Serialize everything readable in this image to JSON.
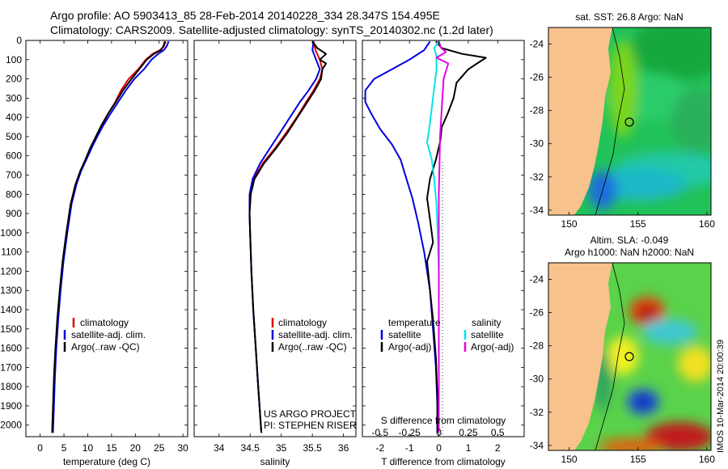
{
  "header": {
    "line1": "Argo profile: AO 5903413_85 28-Feb-2014 20140228_334 28.347S 154.495E",
    "line2": "Climatology: CARS2009. Satellite-adjusted climatology: synTS_20140302.nc (1.2d later)"
  },
  "colors": {
    "climatology": "#e00000",
    "satellite": "#0000e0",
    "argo": "#000000",
    "salinity_satellite": "#00e6e6",
    "salinity_argo": "#e600e6",
    "land": "#f7c28c"
  },
  "depth_ticks": [
    "0",
    "100",
    "200",
    "300",
    "400",
    "500",
    "600",
    "700",
    "800",
    "900",
    "1000",
    "1100",
    "1200",
    "1300",
    "1400",
    "1500",
    "1600",
    "1700",
    "1800",
    "1900",
    "2000"
  ],
  "chart_data": [
    {
      "type": "line",
      "xlabel": "temperature (deg C)",
      "xlim": [
        -3,
        31
      ],
      "ylim": [
        2060,
        0
      ],
      "x_ticks": [
        "0",
        "5",
        "10",
        "15",
        "20",
        "25",
        "30"
      ],
      "legend": {
        "placement": "lower-left",
        "entries": [
          "climatology",
          "satellite-adj. clim.",
          "Argo(..raw -QC)"
        ]
      },
      "series": [
        {
          "name": "climatology",
          "color": "#e00000",
          "points": [
            [
              26.4,
              5
            ],
            [
              26.0,
              30
            ],
            [
              25.2,
              50
            ],
            [
              23.6,
              70
            ],
            [
              22.2,
              100
            ],
            [
              20.6,
              150
            ],
            [
              18.6,
              200
            ],
            [
              17.0,
              260
            ],
            [
              15.8,
              320
            ],
            [
              14.3,
              380
            ],
            [
              13.0,
              440
            ],
            [
              11.8,
              500
            ],
            [
              10.6,
              560
            ],
            [
              9.6,
              620
            ],
            [
              8.5,
              680
            ],
            [
              7.5,
              750
            ],
            [
              6.5,
              850
            ],
            [
              5.6,
              1000
            ],
            [
              4.8,
              1150
            ],
            [
              4.2,
              1300
            ],
            [
              3.7,
              1450
            ],
            [
              3.3,
              1600
            ],
            [
              3.0,
              1750
            ],
            [
              2.8,
              1900
            ],
            [
              2.6,
              2040
            ]
          ]
        },
        {
          "name": "satellite-adj. clim.",
          "color": "#0000e0",
          "points": [
            [
              27.0,
              5
            ],
            [
              26.6,
              30
            ],
            [
              26.0,
              50
            ],
            [
              24.8,
              70
            ],
            [
              23.4,
              100
            ],
            [
              21.8,
              150
            ],
            [
              19.8,
              200
            ],
            [
              18.0,
              260
            ],
            [
              16.4,
              320
            ],
            [
              14.8,
              380
            ],
            [
              13.3,
              440
            ],
            [
              12.0,
              500
            ],
            [
              10.8,
              560
            ],
            [
              9.7,
              620
            ],
            [
              8.6,
              680
            ],
            [
              7.6,
              750
            ],
            [
              6.6,
              850
            ],
            [
              5.7,
              1000
            ],
            [
              4.9,
              1150
            ],
            [
              4.3,
              1300
            ],
            [
              3.8,
              1450
            ],
            [
              3.4,
              1600
            ],
            [
              3.1,
              1750
            ],
            [
              2.9,
              1900
            ],
            [
              2.7,
              2040
            ]
          ]
        },
        {
          "name": "Argo(..raw -QC)",
          "color": "#000000",
          "points": [
            [
              26.2,
              5
            ],
            [
              25.9,
              30
            ],
            [
              25.4,
              50
            ],
            [
              23.9,
              70
            ],
            [
              22.4,
              100
            ],
            [
              20.8,
              150
            ],
            [
              19.2,
              200
            ],
            [
              17.4,
              260
            ],
            [
              15.9,
              320
            ],
            [
              14.3,
              380
            ],
            [
              12.9,
              440
            ],
            [
              11.7,
              500
            ],
            [
              10.5,
              560
            ],
            [
              9.5,
              620
            ],
            [
              8.4,
              680
            ],
            [
              7.4,
              750
            ],
            [
              6.4,
              850
            ],
            [
              5.5,
              1000
            ],
            [
              4.7,
              1150
            ],
            [
              4.1,
              1300
            ],
            [
              3.6,
              1450
            ],
            [
              3.2,
              1600
            ],
            [
              2.9,
              1750
            ],
            [
              2.7,
              1900
            ],
            [
              2.5,
              2040
            ]
          ]
        }
      ]
    },
    {
      "type": "line",
      "xlabel": "salinity",
      "xlim": [
        33.6,
        36.2
      ],
      "ylim": [
        2060,
        0
      ],
      "x_ticks": [
        "34",
        "34.5",
        "35",
        "35.5",
        "36"
      ],
      "legend": {
        "placement": "lower-right",
        "entries": [
          "climatology",
          "satellite-adj. clim.",
          "Argo(..raw -QC)"
        ]
      },
      "annotation": [
        "US ARGO PROJECT",
        "PI: STEPHEN RISER"
      ],
      "series": [
        {
          "name": "climatology",
          "color": "#e00000",
          "points": [
            [
              35.52,
              5
            ],
            [
              35.55,
              50
            ],
            [
              35.62,
              100
            ],
            [
              35.66,
              150
            ],
            [
              35.62,
              200
            ],
            [
              35.52,
              260
            ],
            [
              35.4,
              320
            ],
            [
              35.25,
              400
            ],
            [
              35.08,
              480
            ],
            [
              34.9,
              560
            ],
            [
              34.7,
              640
            ],
            [
              34.56,
              720
            ],
            [
              34.5,
              800
            ],
            [
              34.49,
              900
            ],
            [
              34.5,
              1000
            ],
            [
              34.52,
              1200
            ],
            [
              34.55,
              1400
            ],
            [
              34.59,
              1600
            ],
            [
              34.63,
              1800
            ],
            [
              34.68,
              2040
            ]
          ]
        },
        {
          "name": "satellite-adj. clim.",
          "color": "#0000e0",
          "points": [
            [
              35.52,
              5
            ],
            [
              35.5,
              50
            ],
            [
              35.56,
              100
            ],
            [
              35.62,
              150
            ],
            [
              35.56,
              200
            ],
            [
              35.44,
              260
            ],
            [
              35.3,
              320
            ],
            [
              35.14,
              400
            ],
            [
              34.98,
              480
            ],
            [
              34.82,
              560
            ],
            [
              34.66,
              640
            ],
            [
              34.54,
              720
            ],
            [
              34.49,
              800
            ],
            [
              34.49,
              900
            ],
            [
              34.5,
              1000
            ],
            [
              34.52,
              1200
            ],
            [
              34.55,
              1400
            ],
            [
              34.59,
              1600
            ],
            [
              34.63,
              1800
            ],
            [
              34.68,
              2040
            ]
          ]
        },
        {
          "name": "Argo(..raw -QC)",
          "color": "#000000",
          "points": [
            [
              35.5,
              5
            ],
            [
              35.58,
              40
            ],
            [
              35.72,
              70
            ],
            [
              35.62,
              100
            ],
            [
              35.72,
              120
            ],
            [
              35.66,
              150
            ],
            [
              35.64,
              200
            ],
            [
              35.54,
              260
            ],
            [
              35.42,
              320
            ],
            [
              35.26,
              400
            ],
            [
              35.1,
              480
            ],
            [
              34.92,
              560
            ],
            [
              34.72,
              640
            ],
            [
              34.57,
              720
            ],
            [
              34.51,
              800
            ],
            [
              34.49,
              900
            ],
            [
              34.5,
              1000
            ],
            [
              34.52,
              1200
            ],
            [
              34.55,
              1400
            ],
            [
              34.59,
              1600
            ],
            [
              34.63,
              1800
            ],
            [
              34.68,
              2040
            ]
          ]
        }
      ]
    },
    {
      "type": "line",
      "xlabel": "T difference from climatology",
      "xlabel_top": "S difference from climatology",
      "xlim": [
        -2.6,
        2.9
      ],
      "ylim": [
        2060,
        0
      ],
      "x_ticks": [
        "-2",
        "-1",
        "0",
        "1",
        "2"
      ],
      "x_ticks_top": [
        "-0.5",
        "-0.25",
        "0",
        "0.25",
        "0.5"
      ],
      "legend": {
        "placement": "lower",
        "temperature_title": "temperature",
        "salinity_title": "salinity",
        "entries": [
          "satellite",
          "Argo(-adj)",
          "satellite",
          "Argo(-adj)"
        ]
      },
      "series": [
        {
          "name": "temperature satellite",
          "color": "#0000e0",
          "points": [
            [
              -0.3,
              5
            ],
            [
              -0.5,
              50
            ],
            [
              -1.0,
              100
            ],
            [
              -1.6,
              150
            ],
            [
              -2.2,
              200
            ],
            [
              -2.5,
              260
            ],
            [
              -2.5,
              320
            ],
            [
              -2.3,
              380
            ],
            [
              -2.0,
              460
            ],
            [
              -1.6,
              540
            ],
            [
              -1.3,
              620
            ],
            [
              -1.1,
              720
            ],
            [
              -0.9,
              820
            ],
            [
              -0.7,
              950
            ],
            [
              -0.5,
              1100
            ],
            [
              -0.3,
              1300
            ],
            [
              -0.2,
              1500
            ],
            [
              -0.1,
              1700
            ],
            [
              -0.05,
              1900
            ],
            [
              -0.05,
              2040
            ]
          ]
        },
        {
          "name": "temperature Argo(-adj)",
          "color": "#000000",
          "points": [
            [
              -0.1,
              5
            ],
            [
              0.1,
              40
            ],
            [
              0.8,
              70
            ],
            [
              1.6,
              90
            ],
            [
              1.3,
              120
            ],
            [
              1.0,
              150
            ],
            [
              0.6,
              220
            ],
            [
              0.5,
              300
            ],
            [
              0.3,
              380
            ],
            [
              0.1,
              450
            ],
            [
              0.05,
              520
            ],
            [
              -0.1,
              620
            ],
            [
              -0.3,
              720
            ],
            [
              -0.4,
              820
            ],
            [
              -0.3,
              930
            ],
            [
              -0.2,
              1050
            ],
            [
              -0.4,
              1150
            ],
            [
              -0.3,
              1300
            ],
            [
              -0.2,
              1450
            ],
            [
              -0.1,
              1650
            ],
            [
              -0.05,
              1850
            ],
            [
              -0.05,
              2040
            ]
          ]
        },
        {
          "name": "salinity satellite",
          "color": "#00e6e6",
          "points": [
            [
              0,
              5
            ],
            [
              -0.04,
              40
            ],
            [
              -0.02,
              80
            ],
            [
              -0.02,
              150
            ],
            [
              -0.04,
              250
            ],
            [
              -0.06,
              350
            ],
            [
              -0.08,
              450
            ],
            [
              -0.1,
              530
            ],
            [
              -0.06,
              620
            ],
            [
              -0.04,
              720
            ],
            [
              -0.02,
              850
            ],
            [
              -0.01,
              1000
            ],
            [
              0,
              1200
            ],
            [
              0,
              1500
            ],
            [
              0,
              1800
            ],
            [
              0,
              2040
            ]
          ]
        },
        {
          "name": "salinity Argo(-adj)",
          "color": "#e600e6",
          "points": [
            [
              0,
              5
            ],
            [
              0.02,
              40
            ],
            [
              0.06,
              60
            ],
            [
              -0.02,
              90
            ],
            [
              0.08,
              120
            ],
            [
              0.04,
              200
            ],
            [
              0.03,
              300
            ],
            [
              0.02,
              400
            ],
            [
              0.01,
              500
            ],
            [
              0.005,
              650
            ],
            [
              0,
              800
            ],
            [
              0,
              1000
            ],
            [
              0,
              1500
            ],
            [
              0,
              2040
            ]
          ]
        }
      ]
    },
    {
      "type": "heatmap",
      "title": "sat. SST: 26.8  Argo: NaN",
      "x_ticks": [
        "150",
        "155",
        "160"
      ],
      "y_ticks": [
        "-24",
        "-26",
        "-28",
        "-30",
        "-32",
        "-34"
      ],
      "marker": {
        "lon": 154.495,
        "lat": -28.347
      }
    },
    {
      "type": "heatmap",
      "title_line1": "Altim. SLA: -0.049",
      "title_line2": "Argo h1000: NaN  h2000: NaN",
      "x_ticks": [
        "150",
        "155",
        "160"
      ],
      "y_ticks": [
        "-24",
        "-26",
        "-28",
        "-30",
        "-32",
        "-34"
      ],
      "marker": {
        "lon": 154.495,
        "lat": -28.347
      }
    }
  ],
  "watermark": "IMOS 10-Mar-2014 20:00:39"
}
